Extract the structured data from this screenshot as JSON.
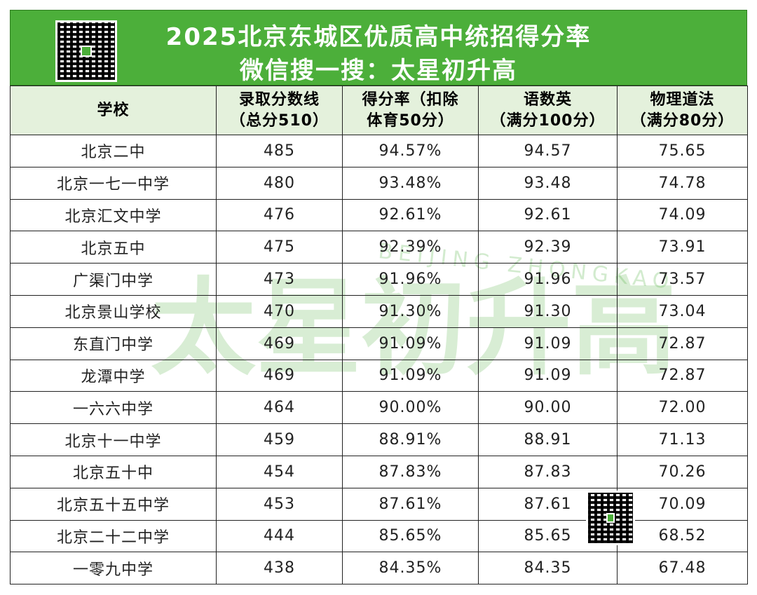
{
  "header": {
    "title": "2025北京东城区优质高中统招得分率",
    "subtitle": "微信搜一搜：太星初升高"
  },
  "watermark": {
    "text": "太星初升高",
    "subtext": "BEIJING ZHONGKAO"
  },
  "table": {
    "columns": [
      [
        "学校"
      ],
      [
        "录取分数线",
        "（总分510）"
      ],
      [
        "得分率（扣除",
        "体育50分）"
      ],
      [
        "语数英",
        "（满分100分）"
      ],
      [
        "物理道法",
        "（满分80分）"
      ]
    ],
    "rows": [
      [
        "北京二中",
        "485",
        "94.57%",
        "94.57",
        "75.65"
      ],
      [
        "北京一七一中学",
        "480",
        "93.48%",
        "93.48",
        "74.78"
      ],
      [
        "北京汇文中学",
        "476",
        "92.61%",
        "92.61",
        "74.09"
      ],
      [
        "北京五中",
        "475",
        "92.39%",
        "92.39",
        "73.91"
      ],
      [
        "广渠门中学",
        "473",
        "91.96%",
        "91.96",
        "73.57"
      ],
      [
        "北京景山学校",
        "470",
        "91.30%",
        "91.30",
        "73.04"
      ],
      [
        "东直门中学",
        "469",
        "91.09%",
        "91.09",
        "72.87"
      ],
      [
        "龙潭中学",
        "469",
        "91.09%",
        "91.09",
        "72.87"
      ],
      [
        "一六六中学",
        "464",
        "90.00%",
        "90.00",
        "72.00"
      ],
      [
        "北京十一中学",
        "459",
        "88.91%",
        "88.91",
        "71.13"
      ],
      [
        "北京五十中",
        "454",
        "87.83%",
        "87.83",
        "70.26"
      ],
      [
        "北京五十五中学",
        "453",
        "87.61%",
        "87.61",
        "70.09"
      ],
      [
        "北京二十二中学",
        "444",
        "85.65%",
        "85.65",
        "68.52"
      ],
      [
        "一零九中学",
        "438",
        "84.35%",
        "84.35",
        "67.48"
      ]
    ]
  }
}
